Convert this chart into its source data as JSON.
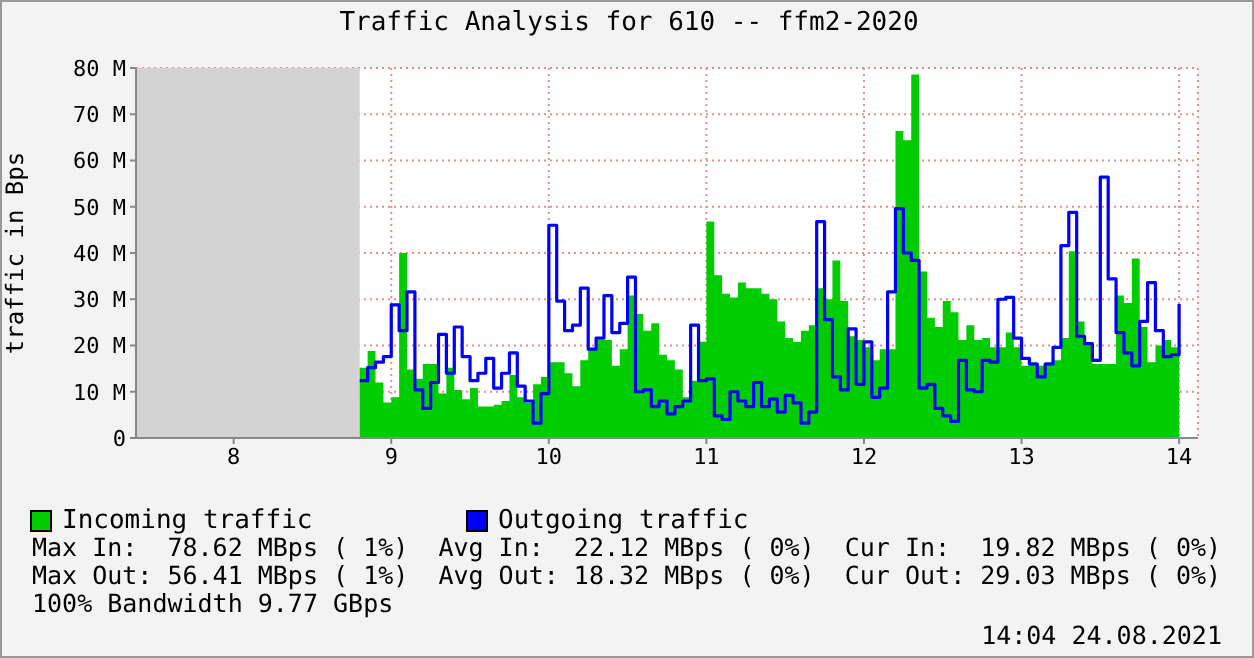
{
  "chart_data": {
    "type": "area",
    "title": "Traffic Analysis for 610 -- ffm2-2020",
    "ylabel": "traffic in Bps",
    "x": [
      8.8,
      8.85,
      8.9,
      8.95,
      9.0,
      9.05,
      9.1,
      9.15,
      9.2,
      9.25,
      9.3,
      9.35,
      9.4,
      9.45,
      9.5,
      9.55,
      9.6,
      9.65,
      9.7,
      9.75,
      9.8,
      9.85,
      9.9,
      9.95,
      10.0,
      10.05,
      10.1,
      10.15,
      10.2,
      10.25,
      10.3,
      10.35,
      10.4,
      10.45,
      10.5,
      10.55,
      10.6,
      10.65,
      10.7,
      10.75,
      10.8,
      10.85,
      10.9,
      10.95,
      11.0,
      11.05,
      11.1,
      11.15,
      11.2,
      11.25,
      11.3,
      11.35,
      11.4,
      11.45,
      11.5,
      11.55,
      11.6,
      11.65,
      11.7,
      11.75,
      11.8,
      11.85,
      11.9,
      11.95,
      12.0,
      12.05,
      12.1,
      12.15,
      12.2,
      12.25,
      12.3,
      12.35,
      12.4,
      12.45,
      12.5,
      12.55,
      12.6,
      12.65,
      12.7,
      12.75,
      12.8,
      12.85,
      12.9,
      12.95,
      13.0,
      13.05,
      13.1,
      13.15,
      13.2,
      13.25,
      13.3,
      13.35,
      13.4,
      13.45,
      13.5,
      13.55,
      13.6,
      13.65,
      13.7,
      13.75,
      13.8,
      13.85,
      13.9,
      13.95,
      14.0
    ],
    "series": [
      {
        "name": "Incoming traffic",
        "type": "area",
        "color": "#00cc00",
        "values": [
          15.2,
          18.8,
          12,
          7.7,
          8.8,
          40,
          14.8,
          12.8,
          16,
          16,
          9.6,
          15.2,
          10.4,
          8.4,
          10.8,
          6.8,
          6.8,
          7.2,
          8,
          13.6,
          8.8,
          7.6,
          11.6,
          13.2,
          16.4,
          16.4,
          14,
          11.2,
          16.8,
          19.2,
          21.2,
          21.2,
          15.6,
          19.2,
          30.8,
          26.8,
          23.2,
          24.8,
          18,
          16.8,
          14.8,
          8.8,
          12.4,
          20.8,
          46.8,
          35.2,
          31.2,
          30.4,
          33.6,
          32.4,
          32.4,
          31.2,
          30,
          25.2,
          21.6,
          20.8,
          23.2,
          24.4,
          32.4,
          30,
          38.4,
          29.6,
          22,
          21.2,
          19.6,
          16.8,
          19.2,
          19.2,
          66.4,
          64.4,
          78.6,
          36,
          26,
          24,
          29.6,
          27.2,
          21.2,
          24.4,
          21.2,
          21.6,
          19.6,
          19.6,
          22.8,
          19.6,
          15.6,
          16.4,
          15.6,
          16.4,
          16.8,
          21.6,
          40.4,
          25.2,
          20.4,
          16,
          16,
          16,
          30.8,
          29.2,
          38.8,
          24,
          16.4,
          20,
          21.2,
          19.6,
          19.8
        ]
      },
      {
        "name": "Outgoing traffic",
        "type": "step",
        "color": "#0000ff",
        "values": [
          12.4,
          15.2,
          16.4,
          17.6,
          28.8,
          23.2,
          31.6,
          10.4,
          6.4,
          12,
          22.4,
          14,
          24,
          17.6,
          12.4,
          14,
          17.2,
          10.8,
          14,
          18.4,
          11.2,
          8,
          3.2,
          9.6,
          46,
          29.6,
          23.2,
          24.4,
          32.4,
          19.2,
          21.6,
          30.8,
          22.8,
          24.8,
          34.8,
          10,
          10.4,
          6.8,
          8,
          5.2,
          6.8,
          8,
          24.4,
          12.4,
          12.8,
          4.8,
          4,
          10,
          8,
          6.8,
          12,
          6.8,
          8.4,
          5.6,
          9.2,
          7.6,
          3.2,
          5.6,
          46.8,
          25.6,
          13.2,
          10.4,
          23.6,
          11.6,
          20.8,
          8.8,
          10.8,
          31.6,
          49.6,
          40,
          38.4,
          10.8,
          11.6,
          6.4,
          4.8,
          3.6,
          16.8,
          10.4,
          10,
          16.8,
          16.4,
          30,
          30.4,
          21.6,
          17.2,
          16,
          13.2,
          16,
          19.6,
          41.6,
          48.8,
          22,
          20.4,
          16.8,
          56.4,
          34.4,
          22.8,
          18.4,
          15.6,
          25.2,
          33.6,
          23.2,
          17.6,
          18,
          29
        ]
      }
    ],
    "xlim": [
      7.38,
      14.12
    ],
    "xticks": [
      8,
      9,
      10,
      11,
      12,
      13,
      14
    ],
    "ylim": [
      0,
      80
    ],
    "yticks": [
      0,
      {
        "value": 10,
        "label": "10 M"
      },
      {
        "value": 20,
        "label": "20 M"
      },
      {
        "value": 30,
        "label": "30 M"
      },
      {
        "value": 40,
        "label": "40 M"
      },
      {
        "value": 50,
        "label": "50 M"
      },
      {
        "value": 60,
        "label": "60 M"
      },
      {
        "value": 70,
        "label": "70 M"
      },
      {
        "value": 80,
        "label": "80 M"
      }
    ],
    "bands": [
      {
        "axis": "x",
        "from": 7.38,
        "to": 8.8,
        "color": "#d3d3d3"
      }
    ],
    "grid": true,
    "legend": "bottom",
    "annotations": [
      "Max In:  78.62 MBps ( 1%)  Avg In:  22.12 MBps ( 0%)  Cur In:  19.82 MBps ( 0%)",
      "Max Out: 56.41 MBps ( 1%)  Avg Out: 18.32 MBps ( 0%)  Cur Out: 29.03 MBps ( 0%)",
      "100% Bandwidth 9.77 GBps",
      "14:04 24.08.2021"
    ]
  }
}
